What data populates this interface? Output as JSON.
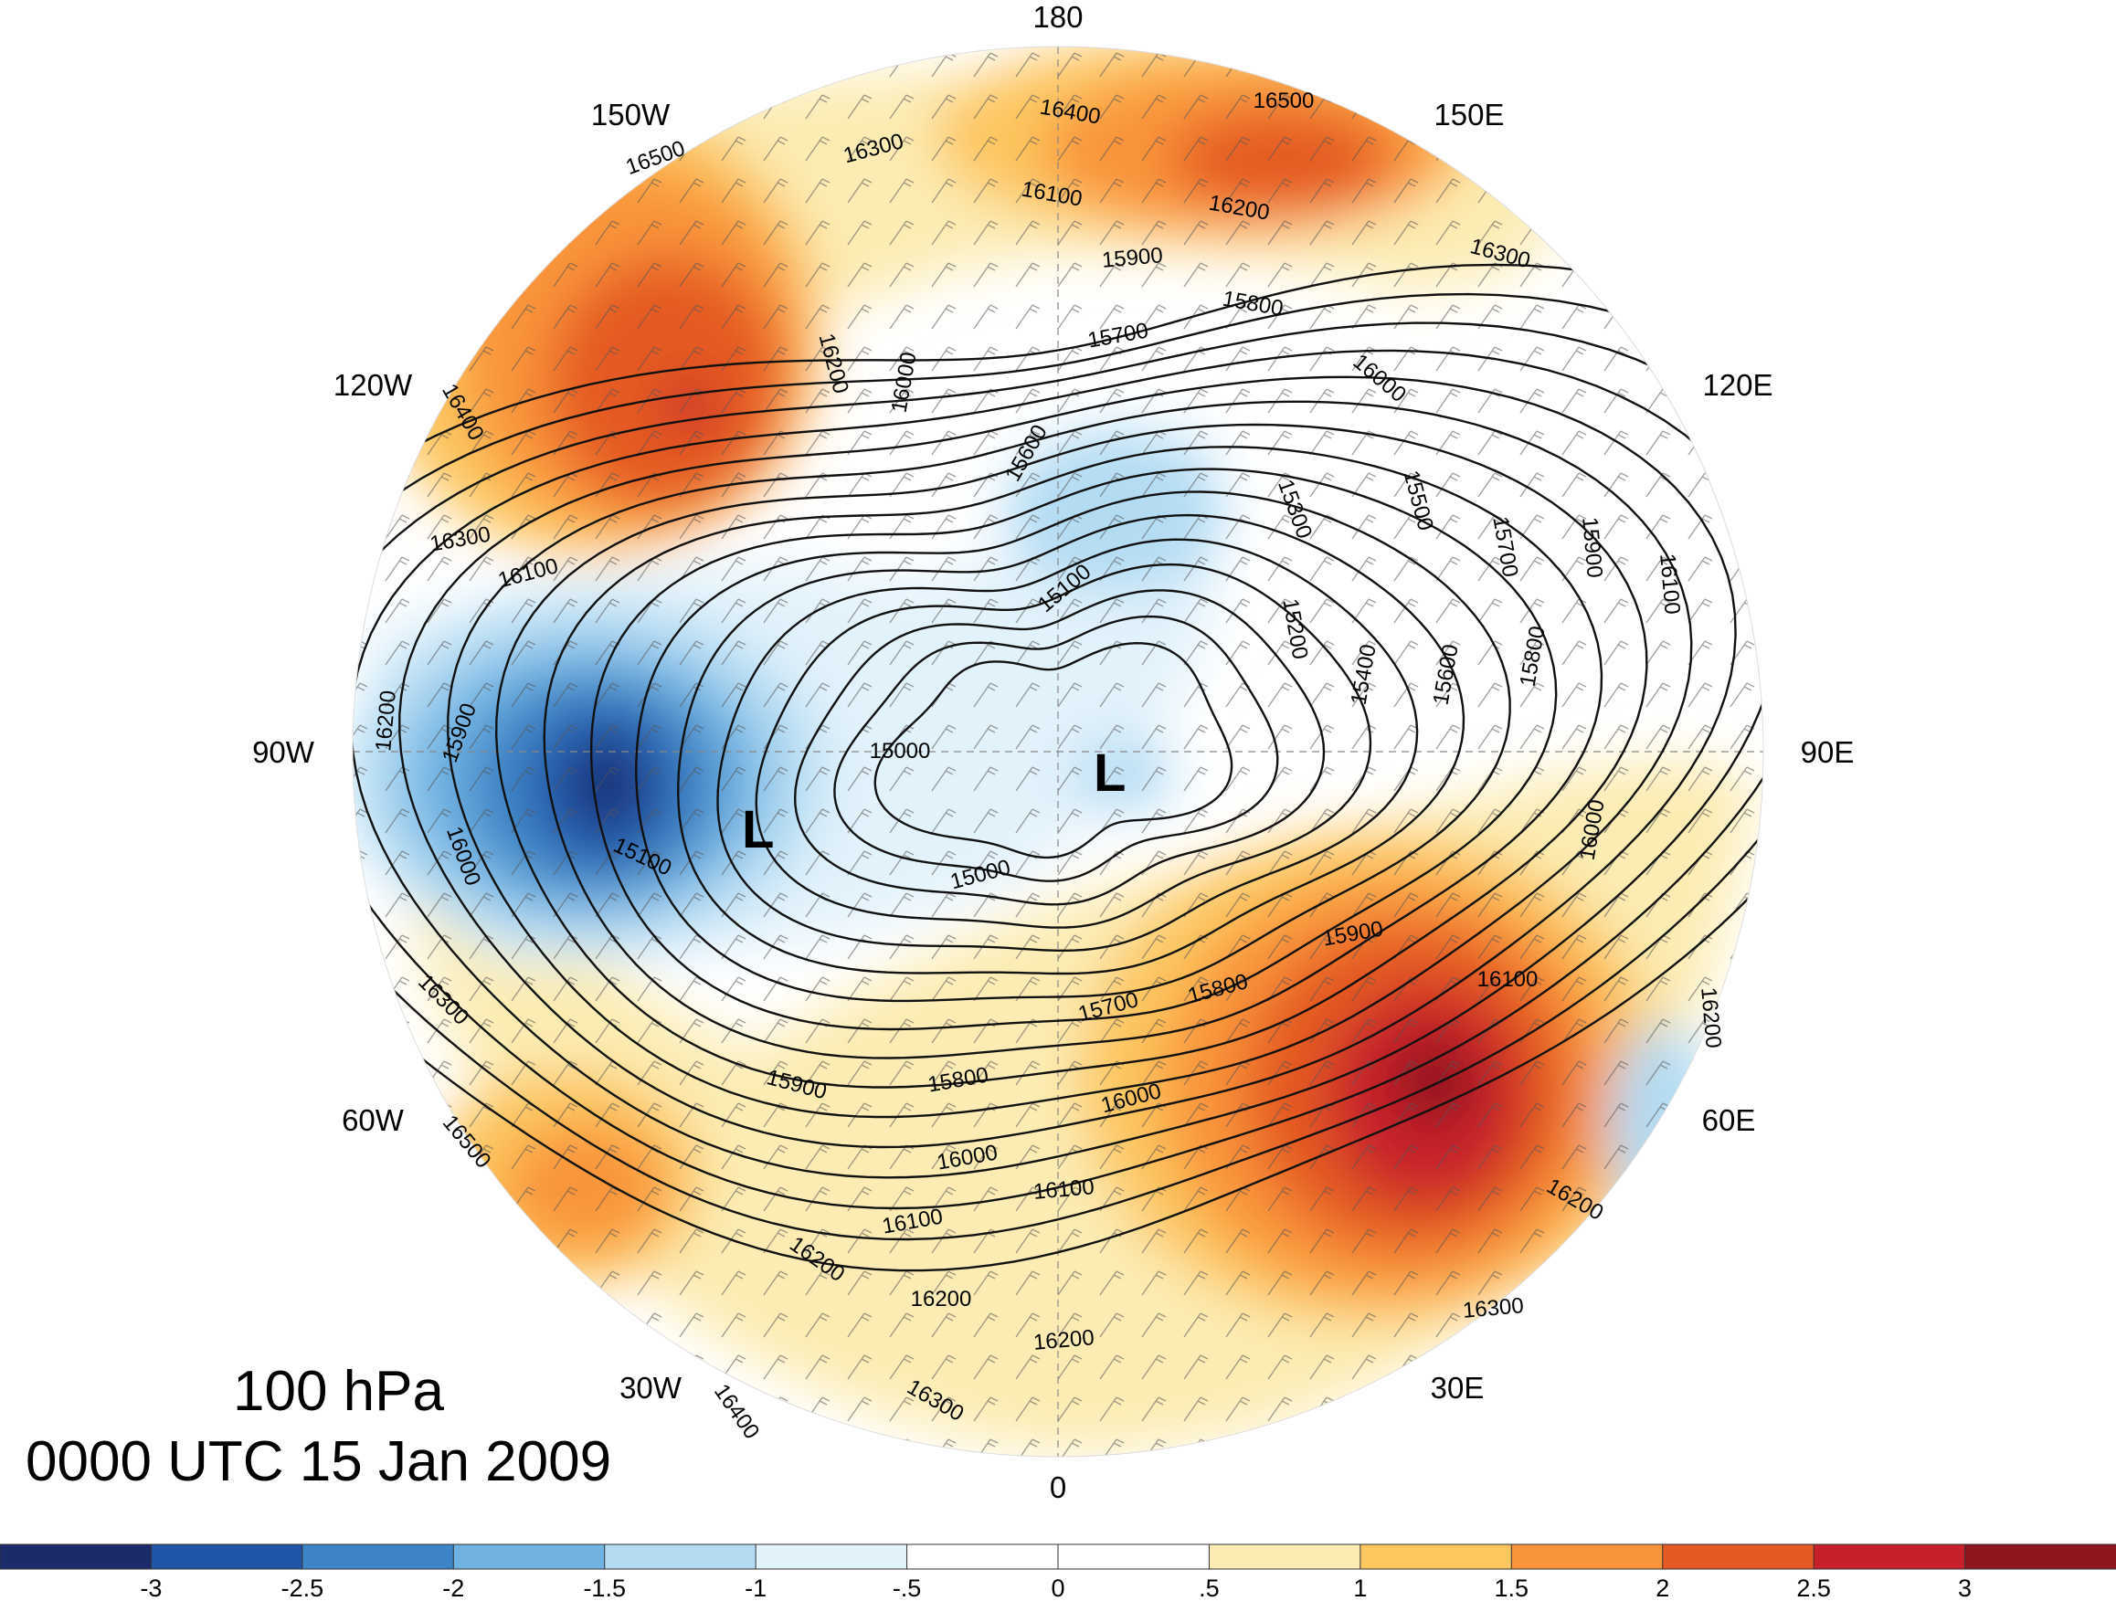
{
  "title": {
    "level": "100 hPa",
    "valid_time": "0000 UTC 15 Jan 2009"
  },
  "projection": "north polar stereographic",
  "longitude_labels": [
    {
      "text": "180",
      "lon": 180
    },
    {
      "text": "150E",
      "lon": 150
    },
    {
      "text": "120E",
      "lon": 120
    },
    {
      "text": "90E",
      "lon": 90
    },
    {
      "text": "60E",
      "lon": 60
    },
    {
      "text": "30E",
      "lon": 30
    },
    {
      "text": "0",
      "lon": 0
    },
    {
      "text": "30W",
      "lon": -30
    },
    {
      "text": "60W",
      "lon": -60
    },
    {
      "text": "90W",
      "lon": -90
    },
    {
      "text": "120W",
      "lon": -120
    },
    {
      "text": "150W",
      "lon": -150
    }
  ],
  "lows": [
    {
      "text": "L",
      "region": "eastern Canada / Baffin"
    },
    {
      "text": "L",
      "region": "northern Siberia"
    }
  ],
  "contour_labels": [
    "16500",
    "16400",
    "16300",
    "16200",
    "16100",
    "16000",
    "15900",
    "15800",
    "15700",
    "15600",
    "15500",
    "15400",
    "15300",
    "15200",
    "15100",
    "15000"
  ],
  "colorbar": {
    "ticks": [
      "-3",
      "-2.5",
      "-2",
      "-1.5",
      "-1",
      "-.5",
      "0",
      ".5",
      "1",
      "1.5",
      "2",
      "2.5",
      "3"
    ],
    "colors": [
      "#1b2a6b",
      "#2055a8",
      "#3d84c6",
      "#70b3e3",
      "#b3dcf3",
      "#e2f2fb",
      "#ffffff",
      "#ffffff",
      "#fcecb3",
      "#fdc65f",
      "#f9943b",
      "#e55a23",
      "#c8202a",
      "#8d151d"
    ]
  },
  "anomaly_centers": [
    {
      "sign": "positive",
      "max": 2.5,
      "region": "Alaska"
    },
    {
      "sign": "positive",
      "max": 2.0,
      "region": "East Siberian Sea"
    },
    {
      "sign": "positive",
      "max": 3.0,
      "region": "western Russia"
    },
    {
      "sign": "positive",
      "max": 1.5,
      "region": "North Atlantic"
    },
    {
      "sign": "negative",
      "max": -3.0,
      "region": "Hudson Bay / Labrador"
    },
    {
      "sign": "negative",
      "max": -1.0,
      "region": "central Arctic"
    }
  ]
}
